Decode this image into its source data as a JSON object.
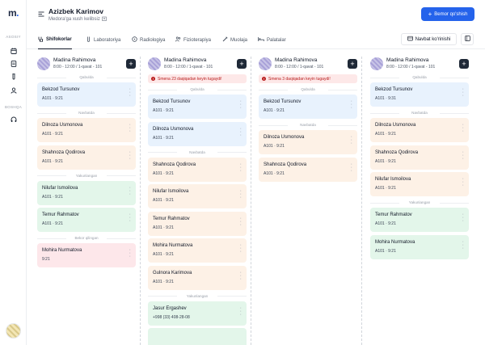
{
  "app": {
    "logo": "m",
    "logo_dot": "."
  },
  "sidebar": {
    "section_main": "ASOSIY",
    "section_other": "BOSHQA",
    "icons": [
      "calendar-icon",
      "document-icon",
      "test-tube-icon",
      "user-icon",
      "headphones-icon"
    ]
  },
  "header": {
    "user_name": "Azizbek Karimov",
    "user_subtitle": "Medora'ga xush kelibsiz",
    "primary_button": "Bemor qo'shish"
  },
  "tabs": [
    {
      "label": "Shifokorlar",
      "icon": "stethoscope-icon",
      "active": true
    },
    {
      "label": "Laboratoriya",
      "icon": "test-tube-icon",
      "active": false
    },
    {
      "label": "Radiologiya",
      "icon": "radiation-icon",
      "active": false
    },
    {
      "label": "Fizioterapiya",
      "icon": "people-icon",
      "active": false
    },
    {
      "label": "Muolaja",
      "icon": "syringe-icon",
      "active": false
    },
    {
      "label": "Palatalar",
      "icon": "bed-icon",
      "active": false
    }
  ],
  "toolbar": {
    "queue_view": "Navbat ko'rinishi"
  },
  "columns": [
    {
      "doctor": "Madina Rahimova",
      "shift": "8:00 - 12:00 / 1-qavat - 101",
      "alert": "",
      "groups": [
        {
          "label": "Qabulda",
          "color": "blue",
          "cards": [
            {
              "name": "Bekzod Tursunov",
              "meta": "A101 · 9:21"
            }
          ]
        },
        {
          "label": "Navbatda",
          "color": "peach",
          "cards": [
            {
              "name": "Dilnoza Usmonova",
              "meta": "A101 · 9:21"
            },
            {
              "name": "Shahnoza Qodirova",
              "meta": "A101 · 9:21"
            }
          ]
        },
        {
          "label": "Yakunlangan",
          "color": "green",
          "cards": [
            {
              "name": "Nilufar Ismoilova",
              "meta": "A101 · 9:21"
            },
            {
              "name": "Temur Rahmatov",
              "meta": "A101 · 9:21"
            }
          ]
        },
        {
          "label": "Bekor qilingan",
          "color": "pink",
          "cards": [
            {
              "name": "Mohira Nurmatova",
              "meta": "9:21"
            }
          ]
        }
      ]
    },
    {
      "doctor": "Madina Rahimova",
      "shift": "8:00 - 12:00 / 1-qavat - 101",
      "alert": "Smena 23 daqiqadan keyin tugaydi!",
      "groups": [
        {
          "label": "Qabulda",
          "color": "blue",
          "cards": [
            {
              "name": "Bekzod Tursunov",
              "meta": "A101 · 9:21"
            },
            {
              "name": "Dilnoza Usmonova",
              "meta": "A101 · 9:21"
            }
          ]
        },
        {
          "label": "Navbatda",
          "color": "peach",
          "cards": [
            {
              "name": "Shahnoza Qodirova",
              "meta": "A101 · 9:21"
            },
            {
              "name": "Nilufar Ismoilova",
              "meta": "A101 · 9:21"
            },
            {
              "name": "Temur Rahmatov",
              "meta": "A101 · 9:21"
            },
            {
              "name": "Mohira Nurmatova",
              "meta": "A101 · 9:21"
            },
            {
              "name": "Gulnora Karimova",
              "meta": "A101 · 9:21"
            }
          ]
        },
        {
          "label": "Yakunlangan",
          "color": "green",
          "cards": [
            {
              "name": "Jasur Ergashev",
              "meta": "+998 (33) 408-28-08"
            },
            {
              "name": "",
              "meta": ""
            }
          ]
        }
      ]
    },
    {
      "doctor": "Madina Rahimova",
      "shift": "8:00 - 12:00 / 1-qavat - 101",
      "alert": "Smena 3 daqiqadan keyin tugaydi!",
      "groups": [
        {
          "label": "Qabulda",
          "color": "blue",
          "cards": [
            {
              "name": "Bekzod Tursunov",
              "meta": "A101 · 9:21"
            }
          ]
        },
        {
          "label": "Navbatda",
          "color": "peach",
          "cards": [
            {
              "name": "Dilnoza Usmonova",
              "meta": "A101 · 9:21"
            },
            {
              "name": "Shahnoza Qodirova",
              "meta": "A101 · 9:21"
            }
          ]
        }
      ]
    },
    {
      "doctor": "Madina Rahimova",
      "shift": "8:00 - 12:00 / 1-qavat - 101",
      "alert": "",
      "groups": [
        {
          "label": "Qabulda",
          "color": "blue",
          "cards": [
            {
              "name": "Bekzod Tursunov",
              "meta": "A101 · 9:31"
            }
          ]
        },
        {
          "label": "Navbatda",
          "color": "peach",
          "cards": [
            {
              "name": "Dilnoza Usmonova",
              "meta": "A101 · 9:21"
            },
            {
              "name": "Shahnoza Qodirova",
              "meta": "A101 · 9:21"
            },
            {
              "name": "Nilufar Ismoilova",
              "meta": "A101 · 9:21"
            }
          ]
        },
        {
          "label": "Yakunlangan",
          "color": "green",
          "cards": [
            {
              "name": "Temur Rahmatov",
              "meta": "A101 · 9:21"
            },
            {
              "name": "Mohira Nurmatova",
              "meta": "A101 · 9:21"
            }
          ]
        }
      ]
    }
  ]
}
